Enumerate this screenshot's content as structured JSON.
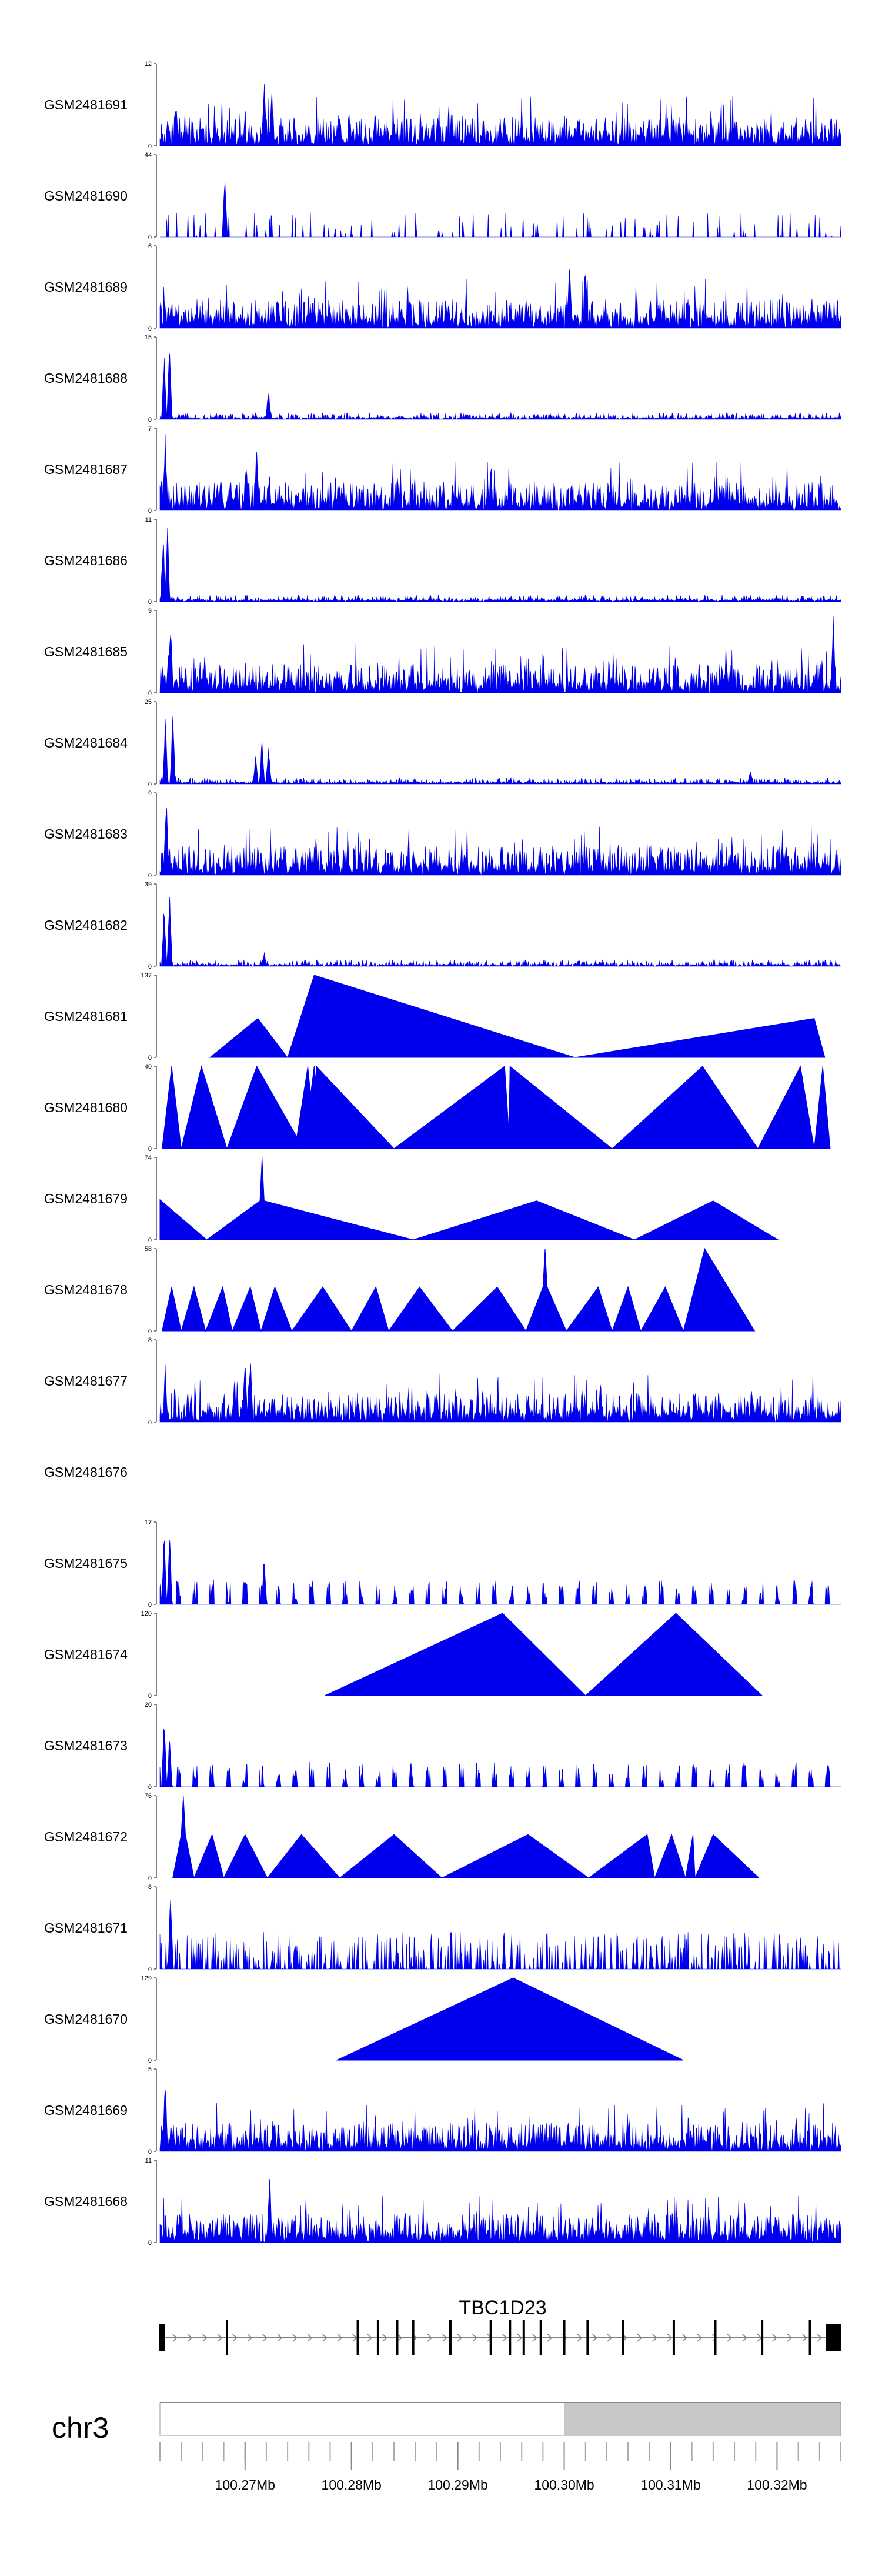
{
  "chart_data": {
    "type": "area",
    "title": "",
    "fill_color": "#0000ee",
    "genome": {
      "chromosome": "chr3",
      "gene": "TBC1D23",
      "xlim": [
        100.262,
        100.326
      ],
      "axis_ticks": [
        {
          "value": 100.27,
          "label": "100.27Mb"
        },
        {
          "value": 100.28,
          "label": "100.28Mb"
        },
        {
          "value": 100.29,
          "label": "100.29Mb"
        },
        {
          "value": 100.3,
          "label": "100.30Mb"
        },
        {
          "value": 100.31,
          "label": "100.31Mb"
        },
        {
          "value": 100.32,
          "label": "100.32Mb"
        }
      ],
      "exons": [
        100.2622,
        100.2683,
        100.2806,
        100.2825,
        100.2843,
        100.2858,
        100.2893,
        100.2931,
        100.2949,
        100.2962,
        100.2978,
        100.3,
        100.3022,
        100.3055,
        100.3103,
        100.3142,
        100.3186,
        100.3231,
        100.3253
      ],
      "cytoband_shaded_from": 100.3
    },
    "series": [
      {
        "name": "GSM2481691",
        "ymax": 12,
        "style": "dense",
        "seed": 691,
        "peaks": [
          [
            100.2635,
            7
          ],
          [
            100.2718,
            11
          ],
          [
            100.2725,
            9
          ]
        ]
      },
      {
        "name": "GSM2481690",
        "ymax": 44,
        "style": "spiky",
        "seed": 690,
        "peaks": [
          [
            100.2681,
            44
          ]
        ]
      },
      {
        "name": "GSM2481689",
        "ymax": 6,
        "style": "dense",
        "seed": 689,
        "peaks": [
          [
            100.3005,
            6
          ],
          [
            100.302,
            5
          ]
        ]
      },
      {
        "name": "GSM2481688",
        "ymax": 15,
        "style": "decay",
        "seed": 688,
        "peaks": [
          [
            100.2624,
            13
          ],
          [
            100.2629,
            15
          ],
          [
            100.2722,
            6
          ]
        ]
      },
      {
        "name": "GSM2481687",
        "ymax": 7,
        "style": "dense",
        "seed": 687,
        "peaks": [
          [
            100.2625,
            7
          ],
          [
            100.2701,
            5
          ],
          [
            100.2711,
            6
          ]
        ]
      },
      {
        "name": "GSM2481686",
        "ymax": 11,
        "style": "decay",
        "seed": 686,
        "peaks": [
          [
            100.2623,
            10
          ],
          [
            100.2627,
            11
          ]
        ]
      },
      {
        "name": "GSM2481685",
        "ymax": 9,
        "style": "dense",
        "seed": 685,
        "peaks": [
          [
            100.263,
            9
          ],
          [
            100.3253,
            9
          ]
        ]
      },
      {
        "name": "GSM2481684",
        "ymax": 25,
        "style": "decay",
        "seed": 684,
        "peaks": [
          [
            100.2625,
            22
          ],
          [
            100.2632,
            25
          ],
          [
            100.271,
            10
          ],
          [
            100.2716,
            16
          ],
          [
            100.2722,
            14
          ],
          [
            100.3175,
            5
          ]
        ]
      },
      {
        "name": "GSM2481683",
        "ymax": 9,
        "style": "dense",
        "seed": 683,
        "peaks": [
          [
            100.2626,
            9
          ]
        ]
      },
      {
        "name": "GSM2481682",
        "ymax": 39,
        "style": "decay",
        "seed": 682,
        "peaks": [
          [
            100.2624,
            33
          ],
          [
            100.2629,
            39
          ],
          [
            100.2718,
            7
          ]
        ]
      },
      {
        "name": "GSM2481681",
        "ymax": 137,
        "style": "triangles",
        "seed": 681,
        "points": [
          [
            100.2667,
            0
          ],
          [
            100.2712,
            65
          ],
          [
            100.274,
            0
          ],
          [
            100.2765,
            137
          ],
          [
            100.301,
            0
          ],
          [
            100.3235,
            65
          ],
          [
            100.3245,
            0
          ]
        ]
      },
      {
        "name": "GSM2481680",
        "ymax": 40,
        "style": "triangles",
        "seed": 680,
        "points": [
          [
            100.2622,
            0
          ],
          [
            100.2631,
            40
          ],
          [
            100.264,
            0
          ],
          [
            100.2659,
            40
          ],
          [
            100.2683,
            0
          ],
          [
            100.2711,
            40
          ],
          [
            100.2755,
            0
          ],
          [
            100.2765,
            40
          ],
          [
            100.2774,
            0
          ],
          [
            100.2747,
            0
          ],
          [
            100.2759,
            40
          ],
          [
            100.2766,
            4
          ],
          [
            100.2767,
            40
          ],
          [
            100.284,
            0
          ],
          [
            100.2944,
            40
          ],
          [
            100.2948,
            8
          ],
          [
            100.2949,
            40
          ],
          [
            100.3045,
            0
          ],
          [
            100.313,
            40
          ],
          [
            100.3182,
            0
          ],
          [
            100.3222,
            40
          ],
          [
            100.3235,
            0
          ],
          [
            100.3243,
            40
          ],
          [
            100.325,
            0
          ]
        ]
      },
      {
        "name": "GSM2481679",
        "ymax": 74,
        "style": "triangles",
        "seed": 679,
        "points": [
          [
            100.262,
            36
          ],
          [
            100.2664,
            0
          ],
          [
            100.2714,
            35
          ],
          [
            100.2716,
            74
          ],
          [
            100.2718,
            35
          ],
          [
            100.2858,
            0
          ],
          [
            100.2974,
            35
          ],
          [
            100.3066,
            0
          ],
          [
            100.314,
            35
          ],
          [
            100.3201,
            0
          ]
        ]
      },
      {
        "name": "GSM2481678",
        "ymax": 58,
        "style": "triangles",
        "seed": 678,
        "points": [
          [
            100.2622,
            0
          ],
          [
            100.2631,
            31
          ],
          [
            100.264,
            0
          ],
          [
            100.2652,
            31
          ],
          [
            100.2663,
            0
          ],
          [
            100.2679,
            31
          ],
          [
            100.2688,
            0
          ],
          [
            100.2705,
            31
          ],
          [
            100.2715,
            0
          ],
          [
            100.2728,
            31
          ],
          [
            100.2744,
            0
          ],
          [
            100.2773,
            31
          ],
          [
            100.28,
            0
          ],
          [
            100.2823,
            31
          ],
          [
            100.2835,
            0
          ],
          [
            100.2864,
            31
          ],
          [
            100.2895,
            0
          ],
          [
            100.2937,
            31
          ],
          [
            100.2964,
            0
          ],
          [
            100.298,
            31
          ],
          [
            100.2982,
            58
          ],
          [
            100.2984,
            31
          ],
          [
            100.3002,
            0
          ],
          [
            100.3032,
            31
          ],
          [
            100.3045,
            0
          ],
          [
            100.306,
            31
          ],
          [
            100.3072,
            0
          ],
          [
            100.3095,
            31
          ],
          [
            100.3112,
            0
          ],
          [
            100.3132,
            58
          ],
          [
            100.3179,
            0
          ]
        ]
      },
      {
        "name": "GSM2481677",
        "ymax": 8,
        "style": "dense",
        "seed": 677,
        "peaks": [
          [
            100.2625,
            6
          ],
          [
            100.269,
            5
          ],
          [
            100.27,
            8
          ],
          [
            100.2705,
            7
          ]
        ]
      },
      {
        "name": "GSM2481676",
        "ymax": null,
        "style": "empty",
        "seed": 676
      },
      {
        "name": "GSM2481675",
        "ymax": 17,
        "style": "sparse",
        "seed": 675,
        "peaks": [
          [
            100.2624,
            15
          ],
          [
            100.2629,
            17
          ],
          [
            100.2718,
            11
          ]
        ]
      },
      {
        "name": "GSM2481674",
        "ymax": 120,
        "style": "triangles",
        "seed": 674,
        "points": [
          [
            100.2775,
            0
          ],
          [
            100.2942,
            120
          ],
          [
            100.302,
            0
          ],
          [
            100.3105,
            120
          ],
          [
            100.3186,
            0
          ]
        ]
      },
      {
        "name": "GSM2481673",
        "ymax": 20,
        "style": "sparse",
        "seed": 673,
        "peaks": [
          [
            100.2624,
            20
          ],
          [
            100.2629,
            13
          ]
        ]
      },
      {
        "name": "GSM2481672",
        "ymax": 76,
        "style": "triangles",
        "seed": 672,
        "points": [
          [
            100.2632,
            0
          ],
          [
            100.264,
            40
          ],
          [
            100.2642,
            76
          ],
          [
            100.2644,
            40
          ],
          [
            100.2652,
            0
          ],
          [
            100.2669,
            40
          ],
          [
            100.268,
            0
          ],
          [
            100.27,
            40
          ],
          [
            100.2721,
            0
          ],
          [
            100.2753,
            40
          ],
          [
            100.2789,
            0
          ],
          [
            100.284,
            40
          ],
          [
            100.2885,
            0
          ],
          [
            100.2966,
            40
          ],
          [
            100.3023,
            0
          ],
          [
            100.3078,
            40
          ],
          [
            100.3085,
            0
          ],
          [
            100.3101,
            40
          ],
          [
            100.3114,
            0
          ],
          [
            100.3121,
            40
          ],
          [
            100.3123,
            0
          ],
          [
            100.314,
            40
          ],
          [
            100.3183,
            0
          ]
        ]
      },
      {
        "name": "GSM2481671",
        "ymax": 8,
        "style": "spiky",
        "seed": 671,
        "peaks": [
          [
            100.263,
            8
          ]
        ]
      },
      {
        "name": "GSM2481670",
        "ymax": 129,
        "style": "triangles",
        "seed": 670,
        "points": [
          [
            100.2786,
            0
          ],
          [
            100.2952,
            129
          ],
          [
            100.3112,
            0
          ]
        ]
      },
      {
        "name": "GSM2481669",
        "ymax": 5,
        "style": "dense",
        "seed": 669,
        "peaks": [
          [
            100.2625,
            5
          ]
        ]
      },
      {
        "name": "GSM2481668",
        "ymax": 11,
        "style": "dense",
        "seed": 668,
        "peaks": [
          [
            100.2723,
            11
          ]
        ]
      }
    ]
  }
}
